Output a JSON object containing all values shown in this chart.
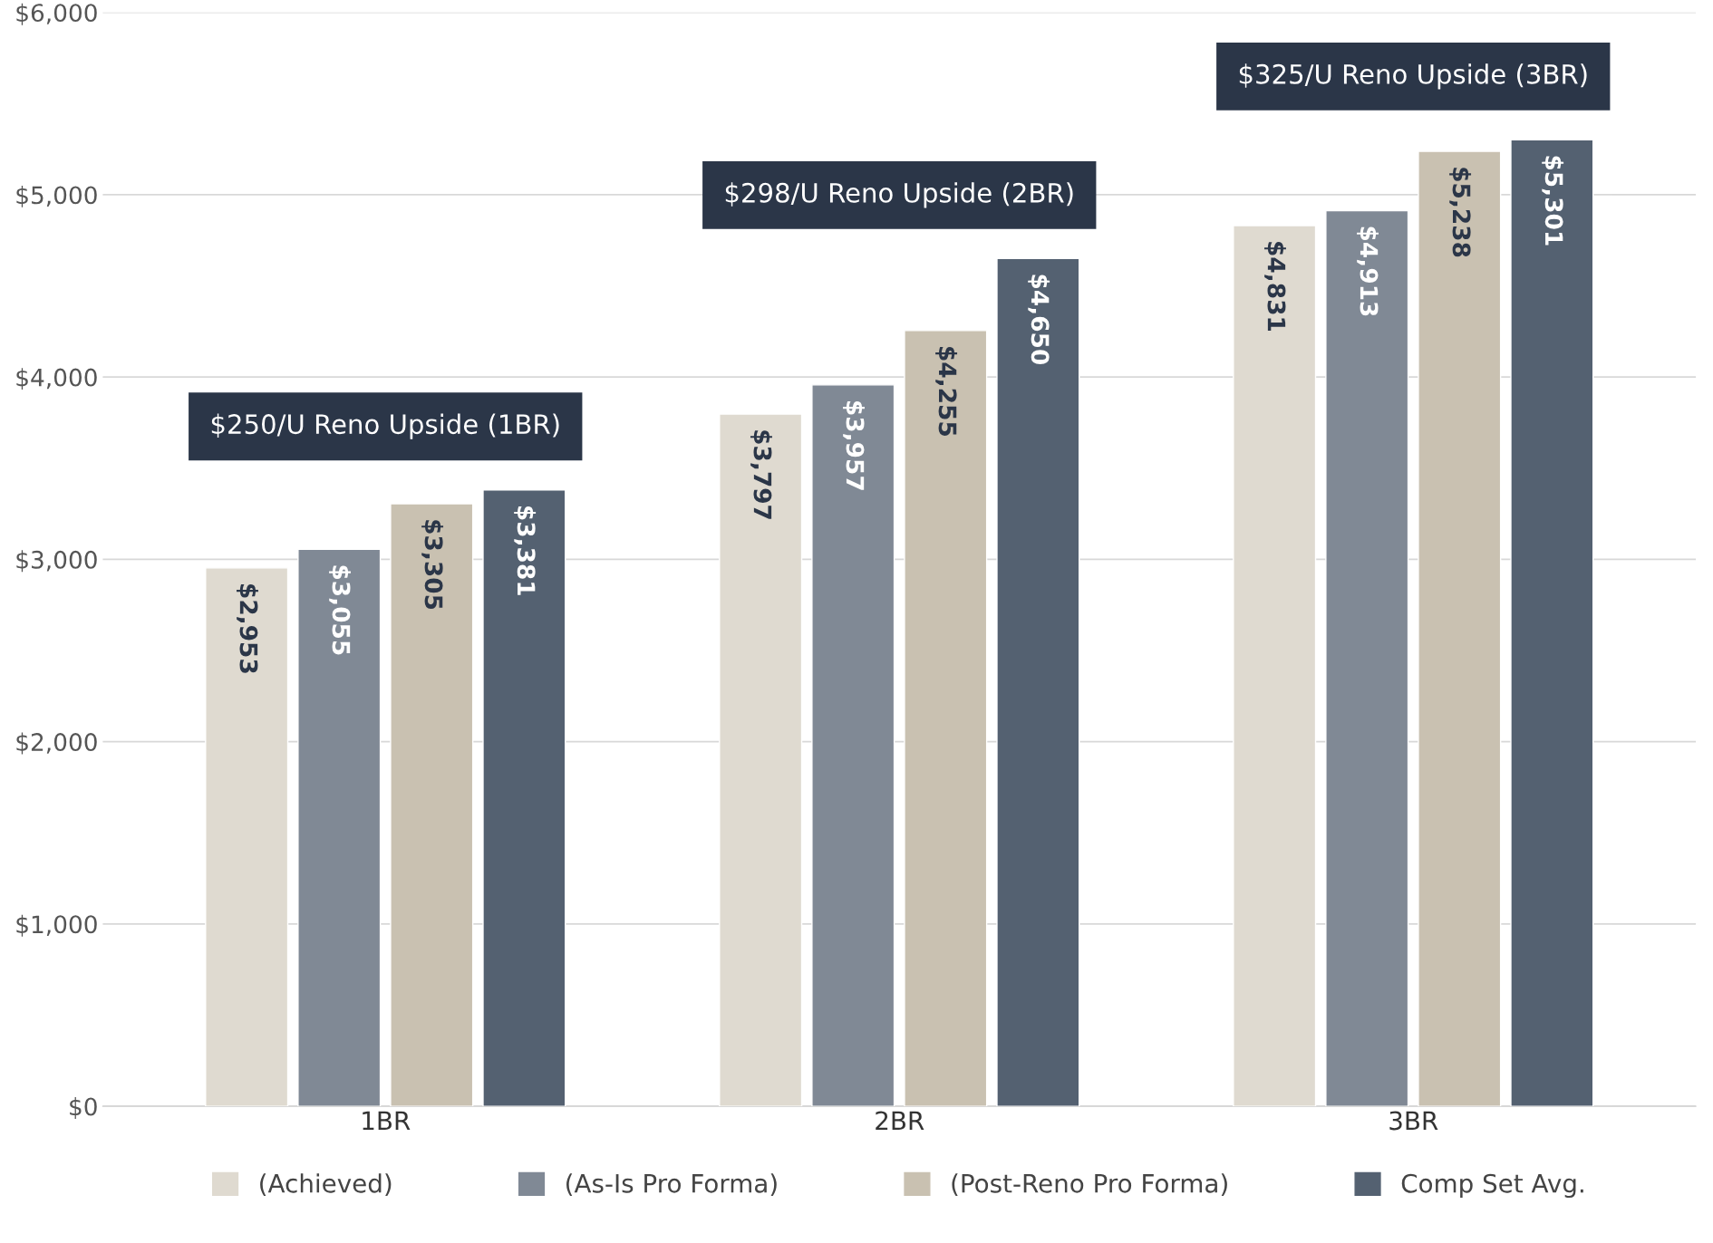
{
  "chart_data": {
    "type": "bar",
    "categories": [
      "1BR",
      "2BR",
      "3BR"
    ],
    "series": [
      {
        "name": "(Achieved)",
        "color": "#dfdad0",
        "values": [
          2953,
          3797,
          4831
        ],
        "value_labels": [
          "$2,953",
          "$3,797",
          "$4,831"
        ]
      },
      {
        "name": "(As-Is Pro Forma)",
        "color": "#808995",
        "values": [
          3055,
          3957,
          4913
        ],
        "value_labels": [
          "$3,055",
          "$3,957",
          "$4,913"
        ]
      },
      {
        "name": "(Post-Reno Pro Forma)",
        "color": "#c9c1b1",
        "values": [
          3305,
          4255,
          5238
        ],
        "value_labels": [
          "$3,305",
          "$4,255",
          "$5,238"
        ]
      },
      {
        "name": "Comp Set Avg.",
        "color": "#546171",
        "values": [
          3381,
          4650,
          5301
        ],
        "value_labels": [
          "$3,381",
          "$4,650",
          "$5,301"
        ]
      }
    ],
    "ylim": [
      0,
      6000
    ],
    "yticks": [
      {
        "value": 0,
        "label": "$0"
      },
      {
        "value": 1000,
        "label": "$1,000"
      },
      {
        "value": 2000,
        "label": "$2,000"
      },
      {
        "value": 3000,
        "label": "$3,000"
      },
      {
        "value": 4000,
        "label": "$4,000"
      },
      {
        "value": 5000,
        "label": "$5,000"
      },
      {
        "value": 6000,
        "label": "$6,000"
      }
    ],
    "annotations": [
      "$250/U Reno Upside (1BR)",
      "$298/U Reno Upside (2BR)",
      "$325/U Reno Upside (3BR)"
    ],
    "grid": "y",
    "legend": "bottom"
  }
}
